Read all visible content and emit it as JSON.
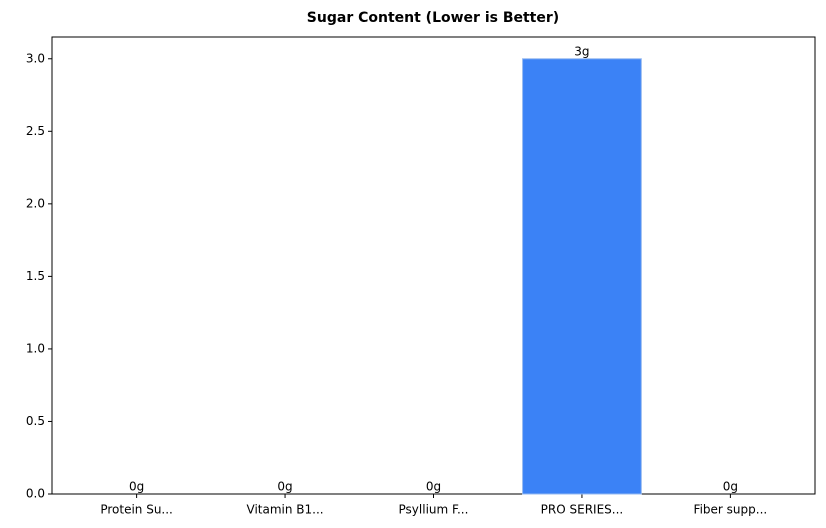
{
  "chart_data": {
    "type": "bar",
    "title": "Sugar Content (Lower is Better)",
    "categories": [
      "Protein Su...",
      "Vitamin B1...",
      "Psyllium F...",
      "PRO SERIES...",
      "Fiber supp..."
    ],
    "values": [
      0,
      0,
      0,
      3,
      0
    ],
    "value_labels": [
      "0g",
      "0g",
      "0g",
      "3g",
      "0g"
    ],
    "color": "#3b82f6",
    "ylim": [
      0,
      3.15
    ],
    "yticks": [
      {
        "value": 0,
        "label": "0.0"
      },
      0.5,
      {
        "value": 1,
        "label": "1.0"
      },
      1.5,
      {
        "value": 2,
        "label": "2.0"
      },
      2.5,
      {
        "value": 3,
        "label": "3.0"
      }
    ],
    "grid": false
  }
}
